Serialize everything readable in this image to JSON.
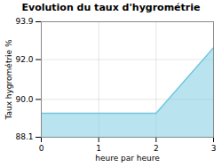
{
  "chart_data": {
    "type": "area",
    "title": "Evolution du taux d'hygrométrie",
    "xlabel": "heure par heure",
    "ylabel": "Taux hygrométrie %",
    "x": [
      0,
      2,
      3
    ],
    "values": [
      89.3,
      89.3,
      92.6
    ],
    "xlim": [
      0,
      3
    ],
    "ylim": [
      88.1,
      93.9
    ],
    "xticks": [
      0,
      1,
      2,
      3
    ],
    "yticks": [
      88.1,
      {
        "value": 90,
        "label": "90.0"
      },
      {
        "value": 92,
        "label": "92.0"
      },
      93.9
    ],
    "color": "#72c8e0",
    "grid": true
  }
}
